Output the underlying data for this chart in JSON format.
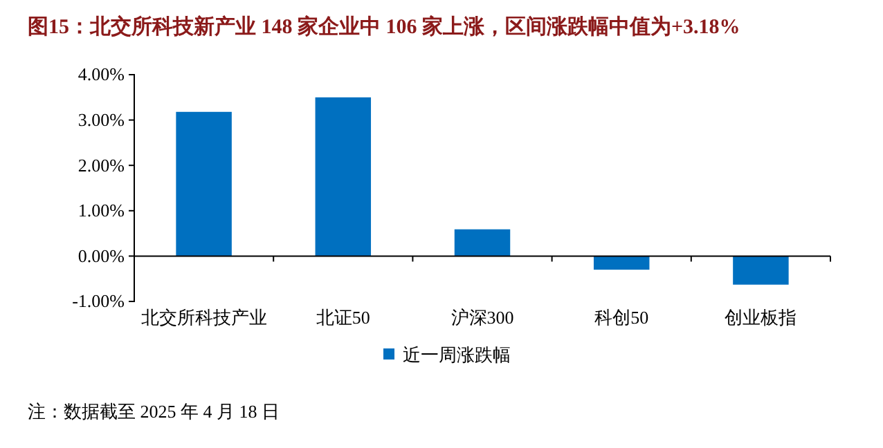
{
  "chart_data": {
    "type": "bar",
    "title": "图15：北交所科技新产业 148 家企业中 106 家上涨，区间涨跌幅中值为+3.18%",
    "categories": [
      "北交所科技产业",
      "北证50",
      "沪深300",
      "科创50",
      "创业板指"
    ],
    "series": [
      {
        "name": "近一周涨跌幅",
        "color": "#0070c0",
        "values": [
          3.18,
          3.5,
          0.59,
          -0.3,
          -0.63
        ]
      }
    ],
    "ylim": [
      -1,
      4
    ],
    "yticks": [
      {
        "value": -1,
        "label": "-1.00%"
      },
      {
        "value": 0,
        "label": "0.00%"
      },
      {
        "value": 1,
        "label": "1.00%"
      },
      {
        "value": 2,
        "label": "2.00%"
      },
      {
        "value": 3,
        "label": "3.00%"
      },
      {
        "value": 4,
        "label": "4.00%"
      }
    ],
    "legend": "bottom",
    "annotations": [
      "注：数据截至 2025 年 4 月 18 日"
    ]
  }
}
